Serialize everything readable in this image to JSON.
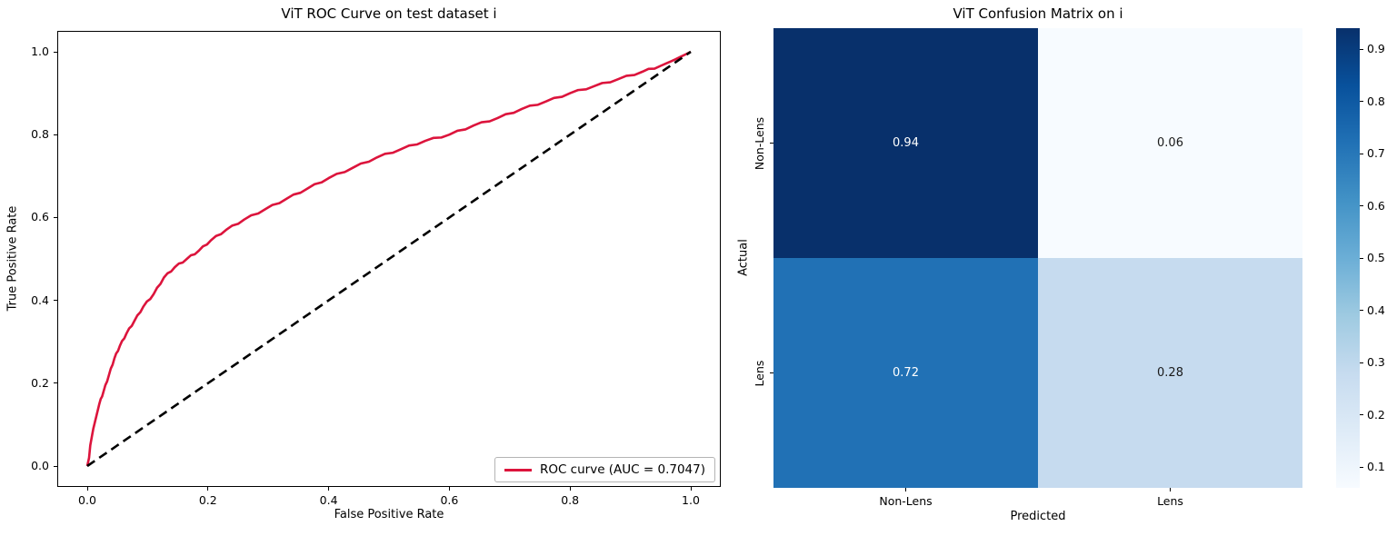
{
  "figure": {
    "background": "#ffffff"
  },
  "chart_data": [
    {
      "type": "line",
      "title": "ViT ROC Curve on test dataset i",
      "xlabel": "False Positive Rate",
      "ylabel": "True Positive Rate",
      "xlim": [
        0.0,
        1.0
      ],
      "ylim": [
        0.0,
        1.0
      ],
      "xticks": [
        0.0,
        0.2,
        0.4,
        0.6,
        0.8,
        1.0
      ],
      "yticks": [
        0.0,
        0.2,
        0.4,
        0.6,
        0.8,
        1.0
      ],
      "grid": false,
      "auc": 0.7047,
      "legend": {
        "position": "lower right",
        "entries": [
          {
            "label": "ROC curve (AUC = 0.7047)",
            "color": "#dc143c",
            "style": "solid"
          }
        ]
      },
      "series": [
        {
          "name": "ROC curve (AUC = 0.7047)",
          "color": "#dc143c",
          "style": "solid",
          "x": [
            0.0,
            0.003,
            0.005,
            0.01,
            0.015,
            0.02,
            0.027,
            0.036,
            0.045,
            0.054,
            0.065,
            0.078,
            0.093,
            0.11,
            0.127,
            0.145,
            0.165,
            0.185,
            0.205,
            0.23,
            0.26,
            0.295,
            0.33,
            0.365,
            0.4,
            0.44,
            0.48,
            0.52,
            0.56,
            0.6,
            0.64,
            0.68,
            0.72,
            0.76,
            0.8,
            0.84,
            0.88,
            0.92,
            0.95,
            0.975,
            1.0
          ],
          "y": [
            0.0,
            0.02,
            0.05,
            0.09,
            0.12,
            0.15,
            0.18,
            0.22,
            0.26,
            0.29,
            0.32,
            0.35,
            0.385,
            0.415,
            0.455,
            0.48,
            0.5,
            0.52,
            0.545,
            0.57,
            0.595,
            0.62,
            0.645,
            0.67,
            0.695,
            0.72,
            0.745,
            0.765,
            0.785,
            0.8,
            0.822,
            0.84,
            0.862,
            0.88,
            0.9,
            0.917,
            0.934,
            0.952,
            0.966,
            0.982,
            1.0
          ]
        },
        {
          "name": "chance-diagonal",
          "color": "#000000",
          "style": "dashed",
          "x": [
            0.0,
            1.0
          ],
          "y": [
            0.0,
            1.0
          ]
        }
      ]
    },
    {
      "type": "heatmap",
      "title": "ViT Confusion Matrix on i",
      "xlabel": "Predicted",
      "ylabel": "Actual",
      "x_categories": [
        "Non-Lens",
        "Lens"
      ],
      "y_categories": [
        "Non-Lens",
        "Lens"
      ],
      "values": [
        [
          0.94,
          0.06
        ],
        [
          0.72,
          0.28
        ]
      ],
      "cell_colors": [
        [
          "#08306b",
          "#f7fbff"
        ],
        [
          "#2171b5",
          "#c6dbef"
        ]
      ],
      "cell_text_colors": [
        [
          "#ffffff",
          "#1a1a1a"
        ],
        [
          "#ffffff",
          "#1a1a1a"
        ]
      ],
      "colormap": "Blues",
      "vmin": 0.06,
      "vmax": 0.94,
      "colorbar": {
        "ticks": [
          0.9,
          0.8,
          0.7,
          0.6,
          0.5,
          0.4,
          0.3,
          0.2,
          0.1
        ],
        "gradient_stops": [
          "#f7fbff",
          "#deebf7",
          "#c6dbef",
          "#9ecae1",
          "#6baed6",
          "#4292c6",
          "#2171b5",
          "#08519c",
          "#08306b"
        ]
      }
    }
  ]
}
